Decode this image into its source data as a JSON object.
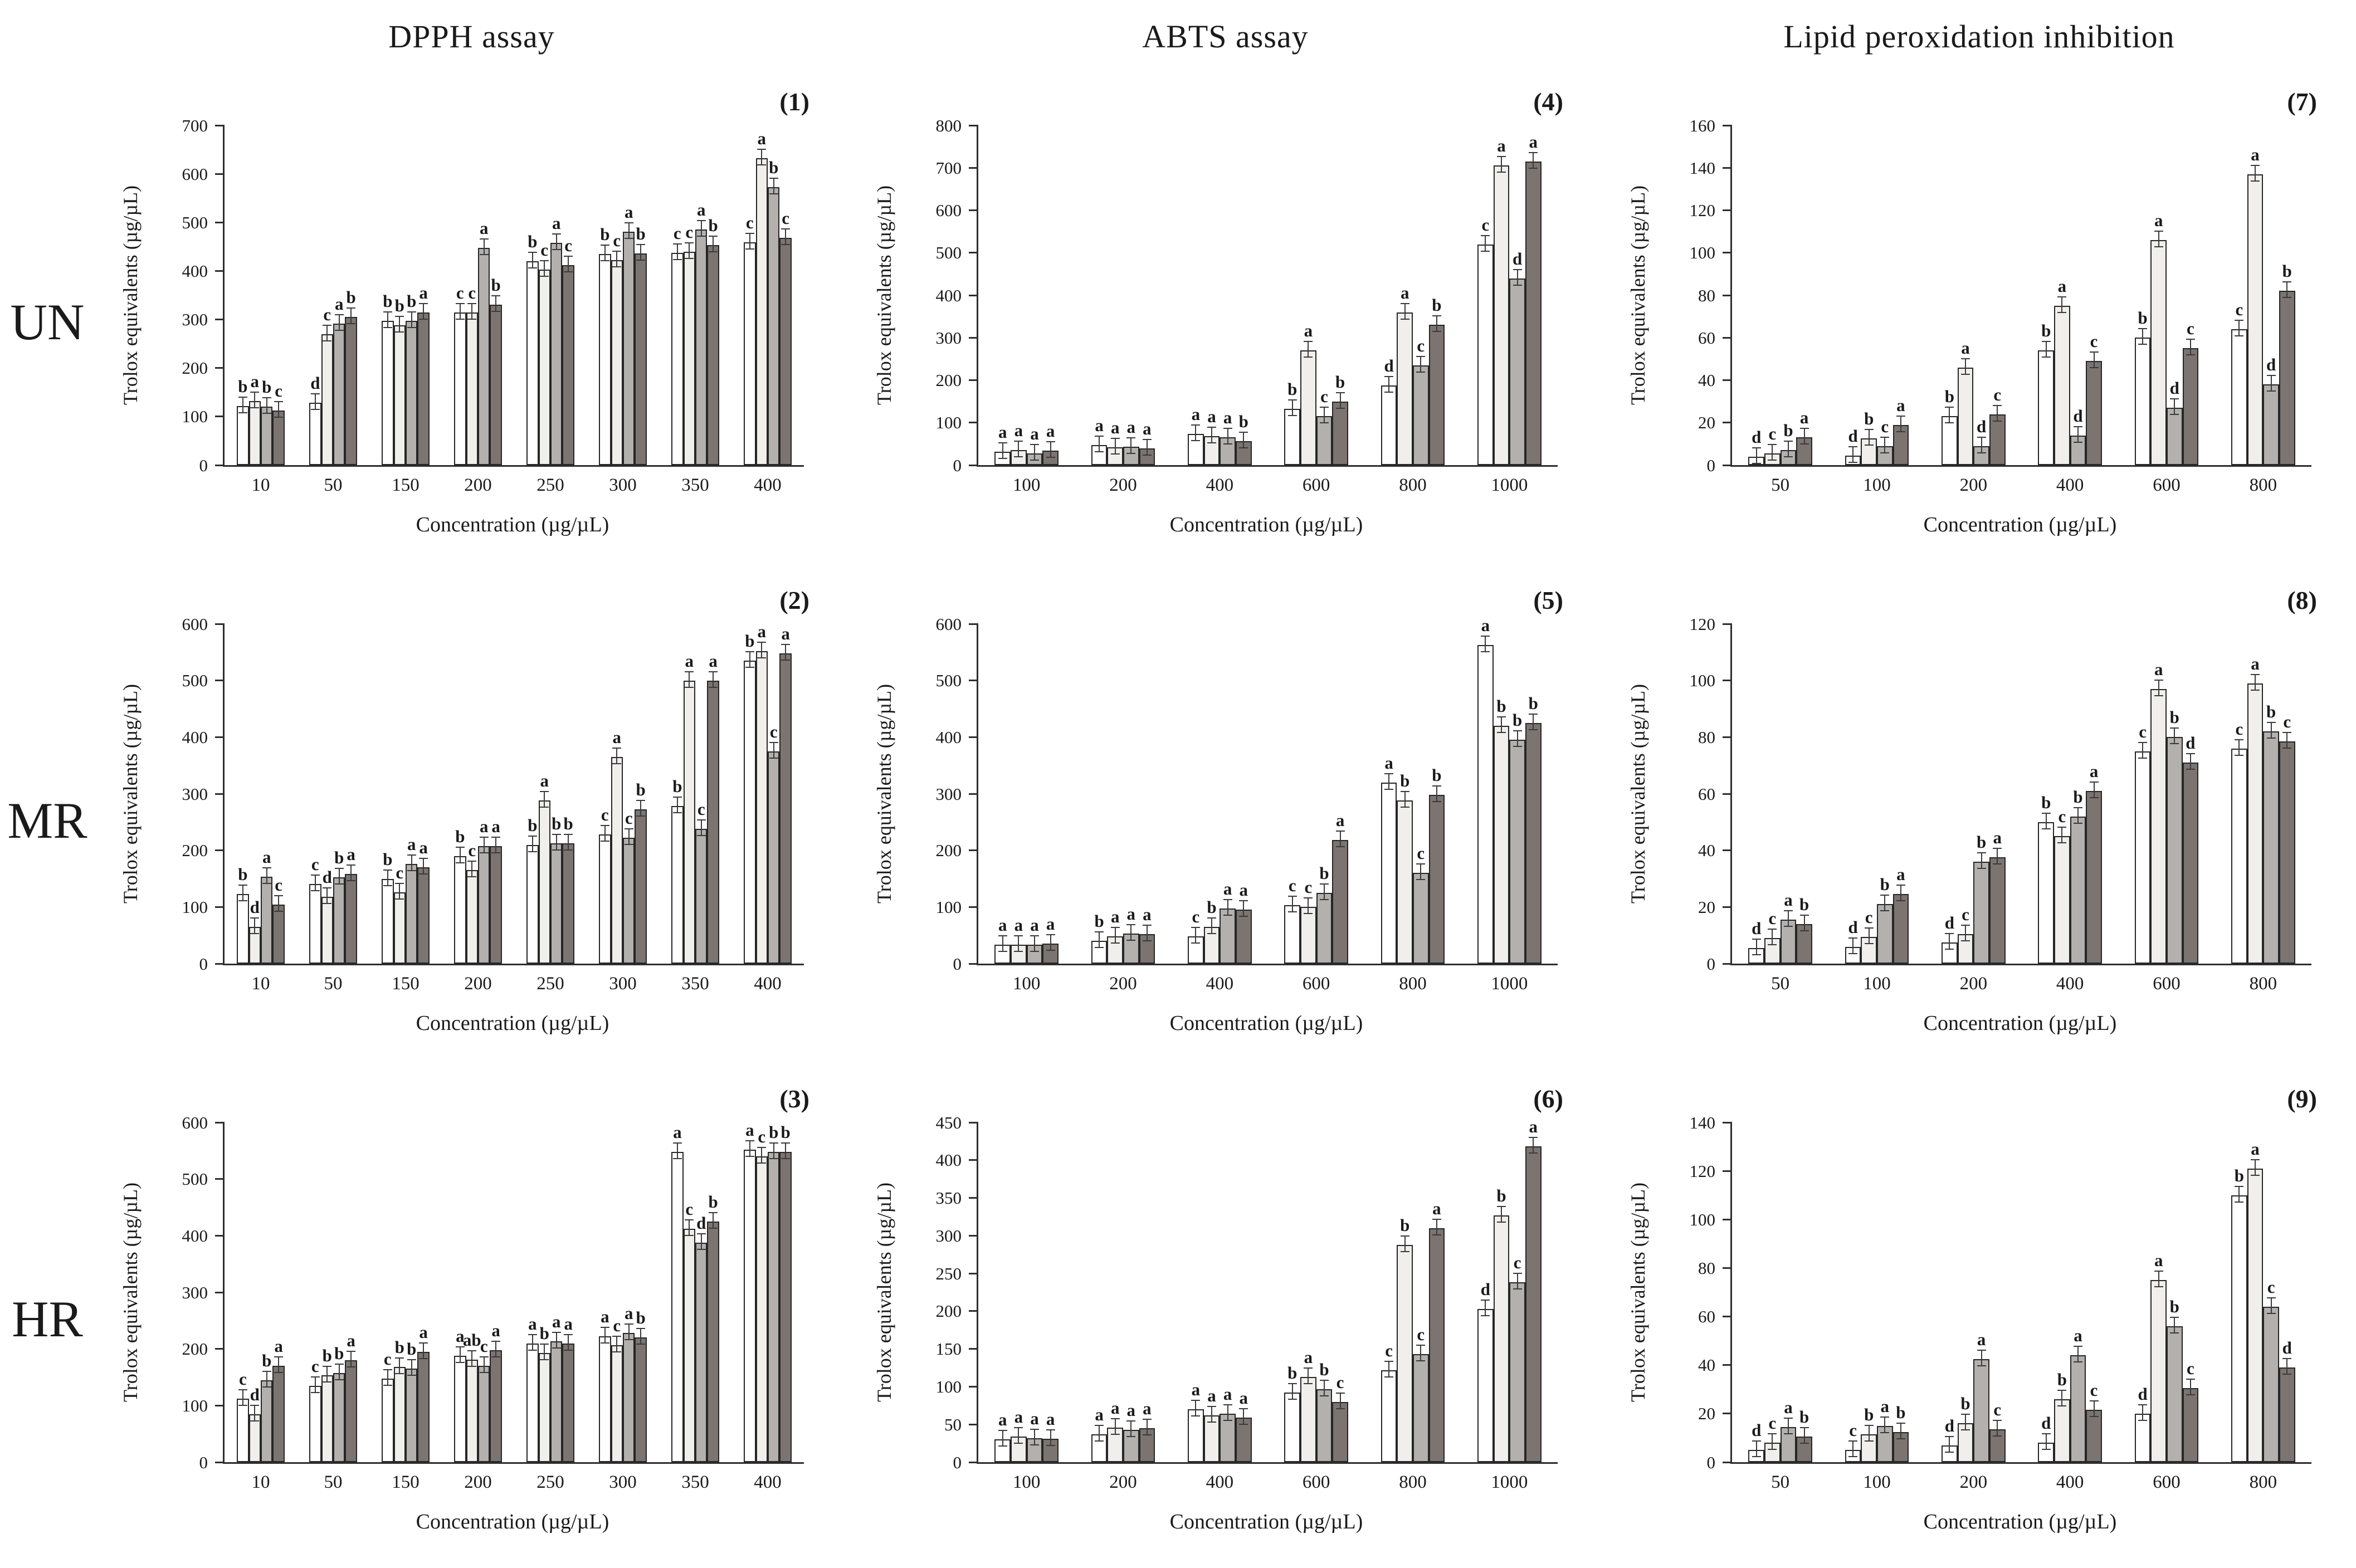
{
  "figure": {
    "column_titles": [
      "DPPH assay",
      "ABTS assay",
      "Lipid peroxidation inhibition"
    ],
    "row_labels": [
      "UN",
      "MR",
      "HR"
    ],
    "ylabel": "Trolox equivalents (µg/µL)",
    "xlabel": "Concentration (µg/µL)"
  },
  "series_colors": [
    "#ffffff",
    "#f1efec",
    "#b3b0ad",
    "#7b7470"
  ],
  "chart_data": [
    {
      "panel": "(1)",
      "row": "UN",
      "assay": "DPPH assay",
      "type": "bar",
      "title": "",
      "xlabel": "Concentration (µg/µL)",
      "ylabel": "Trolox equivalents (µg/µL)",
      "ylim": [
        0,
        700
      ],
      "ystep": 100,
      "grid": false,
      "legend": "none",
      "categories": [
        "10",
        "50",
        "150",
        "200",
        "250",
        "300",
        "350",
        "400"
      ],
      "series": [
        {
          "name": "white",
          "values": [
            122,
            128,
            297,
            315,
            420,
            435,
            437,
            459
          ]
        },
        {
          "name": "light-gray",
          "values": [
            132,
            270,
            288,
            314,
            403,
            422,
            440,
            632
          ]
        },
        {
          "name": "gray",
          "values": [
            120,
            292,
            297,
            447,
            458,
            481,
            486,
            573
          ]
        },
        {
          "name": "dark-gray",
          "values": [
            112,
            305,
            315,
            331,
            412,
            436,
            453,
            468
          ]
        }
      ],
      "letters": [
        [
          "b",
          "a",
          "b",
          "c"
        ],
        [
          "d",
          "c",
          "a",
          "b"
        ],
        [
          "b",
          "b",
          "b",
          "a"
        ],
        [
          "c",
          "c",
          "a",
          "b"
        ],
        [
          "b",
          "c",
          "a",
          "c"
        ],
        [
          "b",
          "c",
          "a",
          "b"
        ],
        [
          "c",
          "c",
          "a",
          "b"
        ],
        [
          "c",
          "a",
          "b",
          "c"
        ]
      ]
    },
    {
      "panel": "(4)",
      "row": "UN",
      "assay": "ABTS assay",
      "type": "bar",
      "title": "",
      "xlabel": "Concentration (µg/µL)",
      "ylabel": "Trolox equivalents (µg/µL)",
      "ylim": [
        0,
        800
      ],
      "ystep": 100,
      "grid": false,
      "legend": "none",
      "categories": [
        "100",
        "200",
        "400",
        "600",
        "800",
        "1000"
      ],
      "series": [
        {
          "name": "white",
          "values": [
            32,
            47,
            73,
            133,
            188,
            520
          ]
        },
        {
          "name": "light-gray",
          "values": [
            35,
            42,
            68,
            270,
            360,
            705
          ]
        },
        {
          "name": "gray",
          "values": [
            28,
            43,
            66,
            115,
            235,
            440
          ]
        },
        {
          "name": "dark-gray",
          "values": [
            34,
            40,
            57,
            150,
            330,
            715
          ]
        }
      ],
      "letters": [
        [
          "a",
          "a",
          "a",
          "a"
        ],
        [
          "a",
          "a",
          "a",
          "a"
        ],
        [
          "a",
          "a",
          "a",
          "b"
        ],
        [
          "b",
          "a",
          "c",
          "b"
        ],
        [
          "d",
          "a",
          "c",
          "b"
        ],
        [
          "c",
          "a",
          "d",
          "a"
        ]
      ]
    },
    {
      "panel": "(7)",
      "row": "UN",
      "assay": "Lipid peroxidation inhibition",
      "type": "bar",
      "title": "",
      "xlabel": "Concentration (µg/µL)",
      "ylabel": "Trolox equivalents (µg/µL)",
      "ylim": [
        0,
        160
      ],
      "ystep": 20,
      "grid": false,
      "legend": "none",
      "categories": [
        "50",
        "100",
        "200",
        "400",
        "600",
        "800"
      ],
      "series": [
        {
          "name": "white",
          "values": [
            4,
            4.5,
            23,
            54,
            60,
            64
          ]
        },
        {
          "name": "light-gray",
          "values": [
            5.5,
            12.5,
            46,
            75,
            106,
            137
          ]
        },
        {
          "name": "gray",
          "values": [
            7,
            9,
            9,
            14,
            27,
            38
          ]
        },
        {
          "name": "dark-gray",
          "values": [
            13,
            19,
            24,
            49,
            55,
            82
          ]
        }
      ],
      "letters": [
        [
          "d",
          "c",
          "b",
          "a"
        ],
        [
          "d",
          "b",
          "c",
          "a"
        ],
        [
          "b",
          "a",
          "d",
          "c"
        ],
        [
          "b",
          "a",
          "d",
          "c"
        ],
        [
          "b",
          "a",
          "d",
          "c"
        ],
        [
          "c",
          "a",
          "d",
          "b"
        ]
      ]
    },
    {
      "panel": "(2)",
      "row": "MR",
      "assay": "DPPH assay",
      "type": "bar",
      "title": "",
      "xlabel": "Concentration (µg/µL)",
      "ylabel": "Trolox equivalents (µg/µL)",
      "ylim": [
        0,
        600
      ],
      "ystep": 100,
      "grid": false,
      "legend": "none",
      "categories": [
        "10",
        "50",
        "150",
        "200",
        "250",
        "300",
        "350",
        "400"
      ],
      "series": [
        {
          "name": "white",
          "values": [
            123,
            141,
            150,
            190,
            210,
            228,
            278,
            535
          ]
        },
        {
          "name": "light-gray",
          "values": [
            65,
            118,
            126,
            165,
            288,
            365,
            500,
            552
          ]
        },
        {
          "name": "gray",
          "values": [
            153,
            152,
            176,
            208,
            212,
            222,
            238,
            375
          ]
        },
        {
          "name": "dark-gray",
          "values": [
            104,
            158,
            170,
            208,
            212,
            272,
            500,
            548
          ]
        }
      ],
      "letters": [
        [
          "b",
          "d",
          "a",
          "c"
        ],
        [
          "c",
          "d",
          "b",
          "a"
        ],
        [
          "b",
          "c",
          "a",
          "a"
        ],
        [
          "b",
          "c",
          "a",
          "a"
        ],
        [
          "b",
          "a",
          "b",
          "b"
        ],
        [
          "c",
          "a",
          "c",
          "b"
        ],
        [
          "b",
          "a",
          "c",
          "a"
        ],
        [
          "b",
          "a",
          "c",
          "a"
        ]
      ]
    },
    {
      "panel": "(5)",
      "row": "MR",
      "assay": "ABTS assay",
      "type": "bar",
      "title": "",
      "xlabel": "Concentration (µg/µL)",
      "ylabel": "Trolox equivalents (µg/µL)",
      "ylim": [
        0,
        600
      ],
      "ystep": 100,
      "grid": false,
      "legend": "none",
      "categories": [
        "100",
        "200",
        "400",
        "600",
        "800",
        "1000"
      ],
      "series": [
        {
          "name": "white",
          "values": [
            33,
            40,
            48,
            103,
            320,
            563
          ]
        },
        {
          "name": "light-gray",
          "values": [
            33,
            48,
            65,
            100,
            288,
            420
          ]
        },
        {
          "name": "gray",
          "values": [
            33,
            53,
            97,
            125,
            160,
            395
          ]
        },
        {
          "name": "dark-gray",
          "values": [
            35,
            52,
            95,
            218,
            298,
            425
          ]
        }
      ],
      "letters": [
        [
          "a",
          "a",
          "a",
          "a"
        ],
        [
          "b",
          "a",
          "a",
          "a"
        ],
        [
          "c",
          "b",
          "a",
          "a"
        ],
        [
          "c",
          "c",
          "b",
          "a"
        ],
        [
          "a",
          "b",
          "c",
          "b"
        ],
        [
          "a",
          "b",
          "b",
          "b"
        ]
      ]
    },
    {
      "panel": "(8)",
      "row": "MR",
      "assay": "Lipid peroxidation inhibition",
      "type": "bar",
      "title": "",
      "xlabel": "Concentration (µg/µL)",
      "ylabel": "Trolox equivalents (µg/µL)",
      "ylim": [
        0,
        120
      ],
      "ystep": 20,
      "grid": false,
      "legend": "none",
      "categories": [
        "50",
        "100",
        "200",
        "400",
        "600",
        "800"
      ],
      "series": [
        {
          "name": "white",
          "values": [
            5.5,
            6,
            7.5,
            50,
            75,
            76
          ]
        },
        {
          "name": "light-gray",
          "values": [
            9,
            9.5,
            10.5,
            45,
            97,
            99
          ]
        },
        {
          "name": "gray",
          "values": [
            15.5,
            21,
            36,
            52,
            80,
            82
          ]
        },
        {
          "name": "dark-gray",
          "values": [
            14,
            24.5,
            37.5,
            61,
            71,
            78.5
          ]
        }
      ],
      "letters": [
        [
          "d",
          "c",
          "a",
          "b"
        ],
        [
          "d",
          "c",
          "b",
          "a"
        ],
        [
          "d",
          "c",
          "b",
          "a"
        ],
        [
          "b",
          "c",
          "b",
          "a"
        ],
        [
          "c",
          "a",
          "b",
          "d"
        ],
        [
          "c",
          "a",
          "b",
          "c"
        ]
      ]
    },
    {
      "panel": "(3)",
      "row": "HR",
      "assay": "DPPH assay",
      "type": "bar",
      "title": "",
      "xlabel": "Concentration (µg/µL)",
      "ylabel": "Trolox equivalents (µg/µL)",
      "ylim": [
        0,
        600
      ],
      "ystep": 100,
      "grid": false,
      "legend": "none",
      "categories": [
        "10",
        "50",
        "150",
        "200",
        "250",
        "300",
        "350",
        "400"
      ],
      "series": [
        {
          "name": "white",
          "values": [
            112,
            135,
            148,
            188,
            210,
            222,
            548,
            552
          ]
        },
        {
          "name": "light-gray",
          "values": [
            85,
            153,
            168,
            181,
            193,
            207,
            412,
            540
          ]
        },
        {
          "name": "gray",
          "values": [
            145,
            157,
            165,
            170,
            213,
            228,
            388,
            548
          ]
        },
        {
          "name": "dark-gray",
          "values": [
            170,
            180,
            195,
            198,
            210,
            220,
            425,
            548
          ]
        }
      ],
      "letters": [
        [
          "c",
          "d",
          "b",
          "a"
        ],
        [
          "c",
          "b",
          "b",
          "a"
        ],
        [
          "c",
          "b",
          "b",
          "a"
        ],
        [
          "a",
          "ab",
          "c",
          "a"
        ],
        [
          "a",
          "b",
          "a",
          "a"
        ],
        [
          "a",
          "c",
          "a",
          "b"
        ],
        [
          "a",
          "c",
          "d",
          "b"
        ],
        [
          "a",
          "c",
          "b",
          "b"
        ]
      ]
    },
    {
      "panel": "(6)",
      "row": "HR",
      "assay": "ABTS assay",
      "type": "bar",
      "title": "",
      "xlabel": "Concentration (µg/µL)",
      "ylabel": "Trolox equivalents (µg/µL)",
      "ylim": [
        0,
        450
      ],
      "ystep": 50,
      "grid": false,
      "legend": "none",
      "categories": [
        "100",
        "200",
        "400",
        "600",
        "800",
        "1000"
      ],
      "series": [
        {
          "name": "white",
          "values": [
            30,
            37,
            70,
            92,
            122,
            203
          ]
        },
        {
          "name": "light-gray",
          "values": [
            34,
            46,
            62,
            113,
            288,
            327
          ]
        },
        {
          "name": "gray",
          "values": [
            32,
            43,
            64,
            97,
            143,
            238
          ]
        },
        {
          "name": "dark-gray",
          "values": [
            31,
            45,
            59,
            80,
            310,
            418
          ]
        }
      ],
      "letters": [
        [
          "a",
          "a",
          "a",
          "a"
        ],
        [
          "a",
          "a",
          "a",
          "a"
        ],
        [
          "a",
          "a",
          "a",
          "a"
        ],
        [
          "b",
          "a",
          "b",
          "c"
        ],
        [
          "c",
          "b",
          "c",
          "a"
        ],
        [
          "d",
          "b",
          "c",
          "a"
        ]
      ]
    },
    {
      "panel": "(9)",
      "row": "HR",
      "assay": "Lipid peroxidation inhibition",
      "type": "bar",
      "title": "",
      "xlabel": "Concentration (µg/µL)",
      "ylabel": "Trolox equivalents (µg/µL)",
      "ylim": [
        0,
        140
      ],
      "ystep": 20,
      "grid": false,
      "legend": "none",
      "categories": [
        "50",
        "100",
        "200",
        "400",
        "600",
        "800"
      ],
      "series": [
        {
          "name": "white",
          "values": [
            5,
            5,
            7,
            8,
            20,
            110
          ]
        },
        {
          "name": "light-gray",
          "values": [
            8,
            11.5,
            16,
            26,
            75,
            121
          ]
        },
        {
          "name": "gray",
          "values": [
            14.5,
            15,
            42.5,
            44,
            56,
            64
          ]
        },
        {
          "name": "dark-gray",
          "values": [
            10.5,
            12.5,
            13.5,
            21.5,
            30.5,
            39
          ]
        }
      ],
      "letters": [
        [
          "d",
          "c",
          "a",
          "b"
        ],
        [
          "c",
          "b",
          "a",
          "b"
        ],
        [
          "d",
          "b",
          "a",
          "c"
        ],
        [
          "d",
          "b",
          "a",
          "c"
        ],
        [
          "d",
          "a",
          "b",
          "c"
        ],
        [
          "b",
          "a",
          "c",
          "d"
        ]
      ]
    }
  ]
}
